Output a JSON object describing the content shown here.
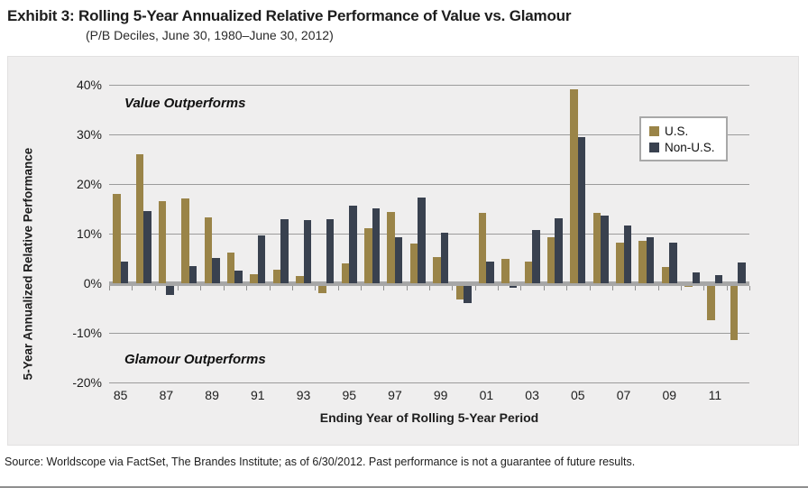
{
  "page": {
    "title": "Exhibit 3: Rolling 5-Year Annualized Relative Performance of Value vs. Glamour",
    "subtitle": "(P/B Deciles, June 30, 1980–June 30, 2012)",
    "source": "Source: Worldscope via FactSet, The Brandes Institute; as of 6/30/2012. Past performance is not a guarantee of future results."
  },
  "chart_data": {
    "type": "bar",
    "title": "Rolling 5-Year Annualized Relative Performance of Value vs. Glamour",
    "xlabel": "Ending Year of Rolling 5-Year Period",
    "ylabel": "5-Year Annualized Relative Performance",
    "ylim": [
      -20,
      40
    ],
    "ytick_values": [
      40,
      30,
      20,
      10,
      0,
      -10,
      -20
    ],
    "ytick_labels": [
      "40%",
      "30%",
      "20%",
      "10%",
      "0%",
      "-10%",
      "-20%"
    ],
    "xtick_labels": [
      "85",
      "87",
      "89",
      "91",
      "93",
      "95",
      "97",
      "99",
      "01",
      "03",
      "05",
      "07",
      "09",
      "11"
    ],
    "grid": true,
    "legend_position": "top-right",
    "annotations": [
      {
        "text": "Value Outperforms",
        "region": "top-left"
      },
      {
        "text": "Glamour Outperforms",
        "region": "bottom-left"
      }
    ],
    "categories": [
      "85",
      "86",
      "87",
      "88",
      "89",
      "90",
      "91",
      "92",
      "93",
      "94",
      "95",
      "96",
      "97",
      "98",
      "99",
      "00",
      "01",
      "02",
      "03",
      "04",
      "05",
      "06",
      "07",
      "08",
      "09",
      "10",
      "11",
      "12"
    ],
    "series": [
      {
        "name": "U.S.",
        "color": "#9a8448",
        "values": [
          18.0,
          26.0,
          16.5,
          17.1,
          13.2,
          6.2,
          1.9,
          2.7,
          1.4,
          -1.8,
          4.0,
          11.1,
          14.4,
          8.0,
          5.3,
          -3.0,
          14.1,
          4.9,
          4.4,
          9.3,
          39.1,
          14.2,
          8.1,
          8.5,
          3.3,
          -0.4,
          -7.3,
          -11.2
        ]
      },
      {
        "name": "Non-U.S.",
        "color": "#39414f",
        "values": [
          4.4,
          14.6,
          -2.2,
          3.5,
          5.1,
          2.6,
          9.6,
          13.0,
          12.7,
          13.0,
          15.6,
          15.1,
          9.2,
          17.3,
          10.1,
          -3.8,
          4.3,
          -0.7,
          10.7,
          13.1,
          29.5,
          13.6,
          11.7,
          9.3,
          8.1,
          2.2,
          1.6,
          4.1
        ]
      }
    ]
  },
  "colors": {
    "us_bar": "#9a8448",
    "non_us_bar": "#39414f",
    "panel_background": "#efeeee",
    "gridline": "#9b9b9b",
    "zero_axis": "#a7a7a7"
  }
}
